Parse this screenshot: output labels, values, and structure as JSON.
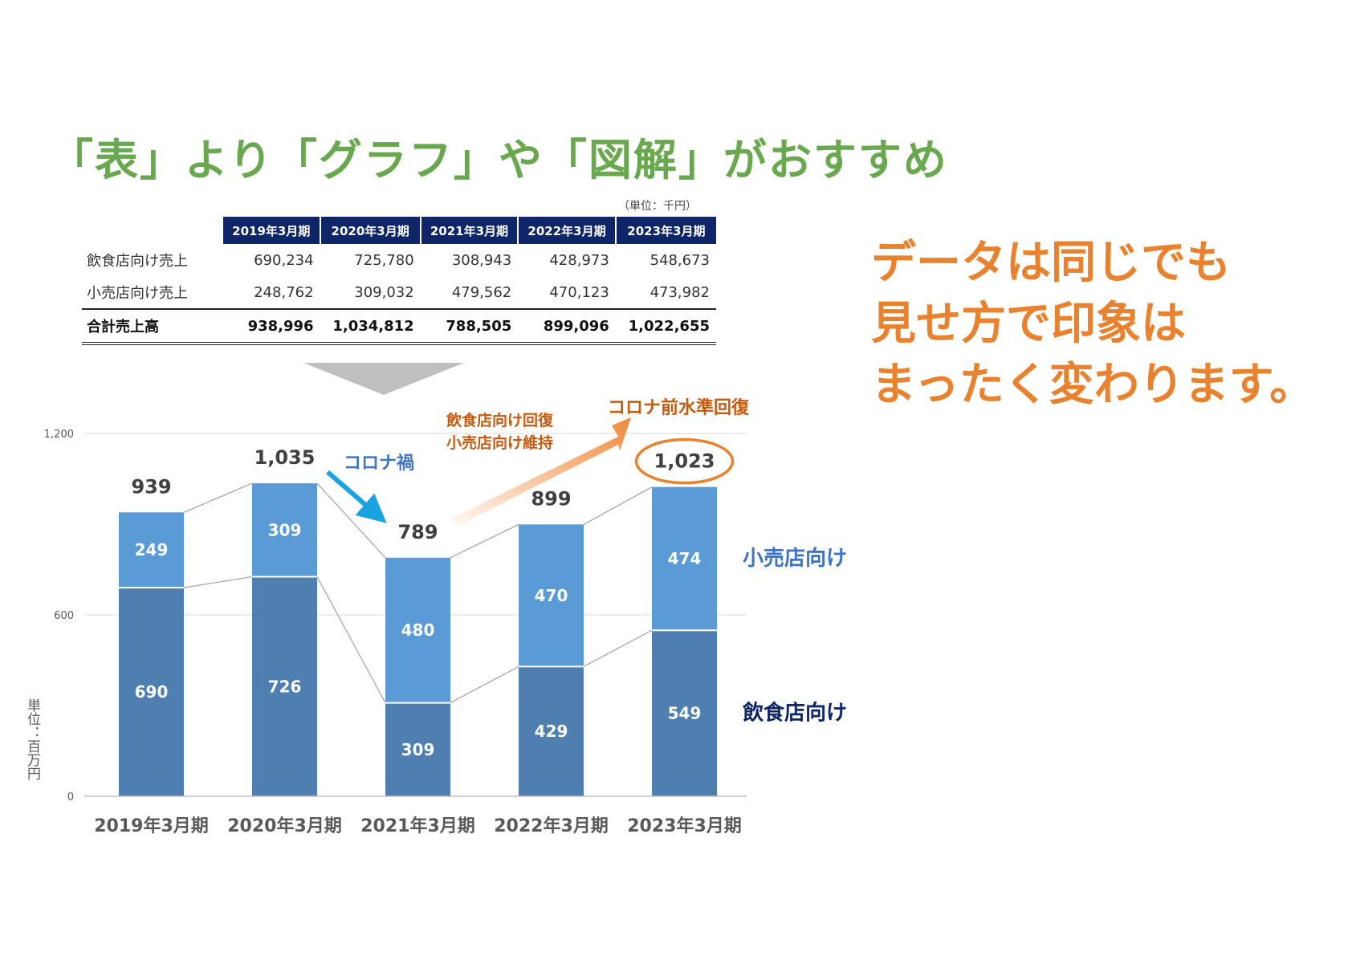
{
  "title": "「表」より「グラフ」や「図解」がおすすめ",
  "table": {
    "unit_note": "（単位：千円）",
    "columns": [
      "2019年3月期",
      "2020年3月期",
      "2021年3月期",
      "2022年3月期",
      "2023年3月期"
    ],
    "rows": [
      {
        "label": "飲食店向け売上",
        "values": [
          "690,234",
          "725,780",
          "308,943",
          "428,973",
          "548,673"
        ]
      },
      {
        "label": "小売店向け売上",
        "values": [
          "248,762",
          "309,032",
          "479,562",
          "470,123",
          "473,982"
        ]
      },
      {
        "label": "合計売上高",
        "values": [
          "938,996",
          "1,034,812",
          "788,505",
          "899,096",
          "1,022,655"
        ]
      }
    ]
  },
  "message": {
    "lines": [
      "データは同じでも",
      "見せ方で印象は",
      "まったく変わります。"
    ]
  },
  "chart_data": {
    "type": "bar",
    "stacked": true,
    "categories": [
      "2019年3月期",
      "2020年3月期",
      "2021年3月期",
      "2022年3月期",
      "2023年3月期"
    ],
    "series": [
      {
        "name": "飲食店向け",
        "values": [
          690,
          726,
          309,
          429,
          549
        ],
        "color": "#4e7fb0"
      },
      {
        "name": "小売店向け",
        "values": [
          249,
          309,
          480,
          470,
          474
        ],
        "color": "#5b9bd5"
      }
    ],
    "totals": [
      939,
      1035,
      789,
      899,
      1023
    ],
    "total_labels": [
      "939",
      "1,035",
      "789",
      "899",
      "1,023"
    ],
    "ylim": [
      0,
      1200
    ],
    "y_ticks": [
      0,
      600,
      1200
    ],
    "y_tick_labels": [
      "0",
      "600",
      "1,200"
    ],
    "ylabel": "単位：百万円",
    "grid": true,
    "legend_placement": "right",
    "highlighted_total_index": 4,
    "annotations": {
      "covid": "コロナ禍",
      "recovery_line1": "飲食店向け回復",
      "recovery_line2": "小売店向け維持",
      "pre_covid": "コロナ前水準回復"
    },
    "colors": {
      "covid_text": "#3d74c4",
      "covid_arrow": "#1aa3e0",
      "recovery_text": "#c55a11",
      "recovery_arrow": "#f08a3c",
      "highlight_ellipse": "#e9822e",
      "retail_legend": "#3d74c4",
      "food_legend": "#0e2567"
    }
  }
}
